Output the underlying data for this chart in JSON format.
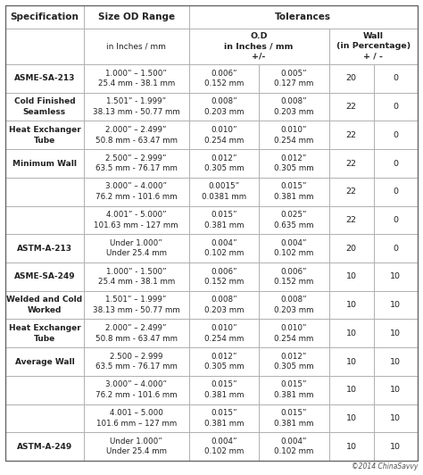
{
  "rows": [
    {
      "spec": "ASME-SA-213",
      "size": "1.000” – 1.500”\n25.4 mm - 38.1 mm",
      "od_plus": "0.006”\n0.152 mm",
      "od_minus": "0.005”\n0.127 mm",
      "wp": "20",
      "wm": "0"
    },
    {
      "spec": "Cold Finished\nSeamless",
      "size": "1.501” - 1.999”\n38.13 mm - 50.77 mm",
      "od_plus": "0.008”\n0.203 mm",
      "od_minus": "0.008”\n0.203 mm",
      "wp": "22",
      "wm": "0"
    },
    {
      "spec": "Heat Exchanger\nTube",
      "size": "2.000” – 2.499”\n50.8 mm - 63.47 mm",
      "od_plus": "0.010”\n0.254 mm",
      "od_minus": "0.010”\n0.254 mm",
      "wp": "22",
      "wm": "0"
    },
    {
      "spec": "Minimum Wall",
      "size": "2.500” – 2.999”\n63.5 mm - 76.17 mm",
      "od_plus": "0.012”\n0.305 mm",
      "od_minus": "0.012”\n0.305 mm",
      "wp": "22",
      "wm": "0"
    },
    {
      "spec": "",
      "size": "3.000” – 4.000”\n76.2 mm - 101.6 mm",
      "od_plus": "0.0015”\n0.0381 mm",
      "od_minus": "0.015”\n0.381 mm",
      "wp": "22",
      "wm": "0"
    },
    {
      "spec": "",
      "size": "4.001” - 5.000”\n101.63 mm - 127 mm",
      "od_plus": "0.015”\n0.381 mm",
      "od_minus": "0.025”\n0.635 mm",
      "wp": "22",
      "wm": "0"
    },
    {
      "spec": "ASTM-A-213",
      "size": "Under 1.000”\nUnder 25.4 mm",
      "od_plus": "0.004”\n0.102 mm",
      "od_minus": "0.004”\n0.102 mm",
      "wp": "20",
      "wm": "0"
    },
    {
      "spec": "ASME-SA-249",
      "size": "1.000” - 1.500”\n25.4 mm - 38.1 mm",
      "od_plus": "0.006”\n0.152 mm",
      "od_minus": "0.006”\n0.152 mm",
      "wp": "10",
      "wm": "10"
    },
    {
      "spec": "Welded and Cold\nWorked",
      "size": "1.501” – 1.999”\n38.13 mm - 50.77 mm",
      "od_plus": "0.008”\n0.203 mm",
      "od_minus": "0.008”\n0.203 mm",
      "wp": "10",
      "wm": "10"
    },
    {
      "spec": "Heat Exchanger\nTube",
      "size": "2.000” – 2.499”\n50.8 mm - 63.47 mm",
      "od_plus": "0.010”\n0.254 mm",
      "od_minus": "0.010”\n0.254 mm",
      "wp": "10",
      "wm": "10"
    },
    {
      "spec": "Average Wall",
      "size": "2.500 – 2.999\n63.5 mm - 76.17 mm",
      "od_plus": "0.012”\n0.305 mm",
      "od_minus": "0.012”\n0.305 mm",
      "wp": "10",
      "wm": "10"
    },
    {
      "spec": "",
      "size": "3.000” – 4.000”\n76.2 mm - 101.6 mm",
      "od_plus": "0.015”\n0.381 mm",
      "od_minus": "0.015”\n0.381 mm",
      "wp": "10",
      "wm": "10"
    },
    {
      "spec": "",
      "size": "4.001 – 5.000\n101.6 mm – 127 mm",
      "od_plus": "0.015”\n0.381 mm",
      "od_minus": "0.015”\n0.381 mm",
      "wp": "10",
      "wm": "10"
    },
    {
      "spec": "ASTM-A-249",
      "size": "Under 1.000”\nUnder 25.4 mm",
      "od_plus": "0.004”\n0.102 mm",
      "od_minus": "0.004”\n0.102 mm",
      "wp": "10",
      "wm": "10"
    }
  ],
  "border_color": "#aaaaaa",
  "text_color": "#222222",
  "copyright": "©2014 ChinaSavvy",
  "fig_w": 4.74,
  "fig_h": 5.32,
  "dpi": 100
}
